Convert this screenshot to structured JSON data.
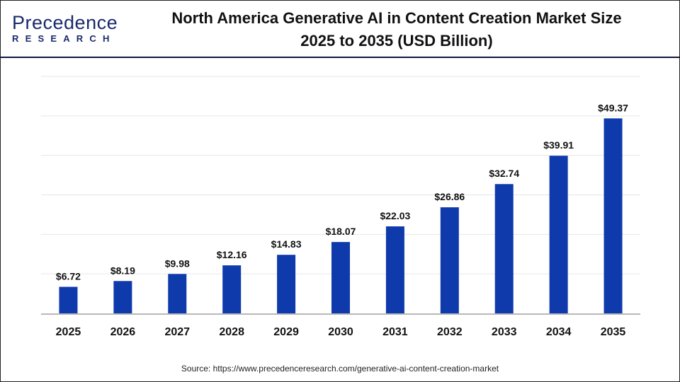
{
  "logo": {
    "text_main": "Precedence",
    "text_sub": "RESEARCH"
  },
  "header": {
    "title_line1": "North America Generative AI in Content Creation Market Size",
    "title_line2": "2025 to 2035 (USD Billion)"
  },
  "source": "Source: https://www.precedenceresearch.com/generative-ai-content-creation-market",
  "chart_data": {
    "type": "bar",
    "title": "North America Generative AI in Content Creation Market Size 2025 to 2035 (USD Billion)",
    "categories": [
      "2025",
      "2026",
      "2027",
      "2028",
      "2029",
      "2030",
      "2031",
      "2032",
      "2033",
      "2034",
      "2035"
    ],
    "values": [
      6.72,
      8.19,
      9.98,
      12.16,
      14.83,
      18.07,
      22.03,
      26.86,
      32.74,
      39.91,
      49.37
    ],
    "data_labels": [
      "$6.72",
      "$8.19",
      "$9.98",
      "$12.16",
      "$14.83",
      "$18.07",
      "$22.03",
      "$26.86",
      "$32.74",
      "$39.91",
      "$49.37"
    ],
    "xlabel": "",
    "ylabel": "",
    "ylim": [
      0,
      60
    ],
    "grid": true,
    "bar_color": "#0f3aac"
  }
}
